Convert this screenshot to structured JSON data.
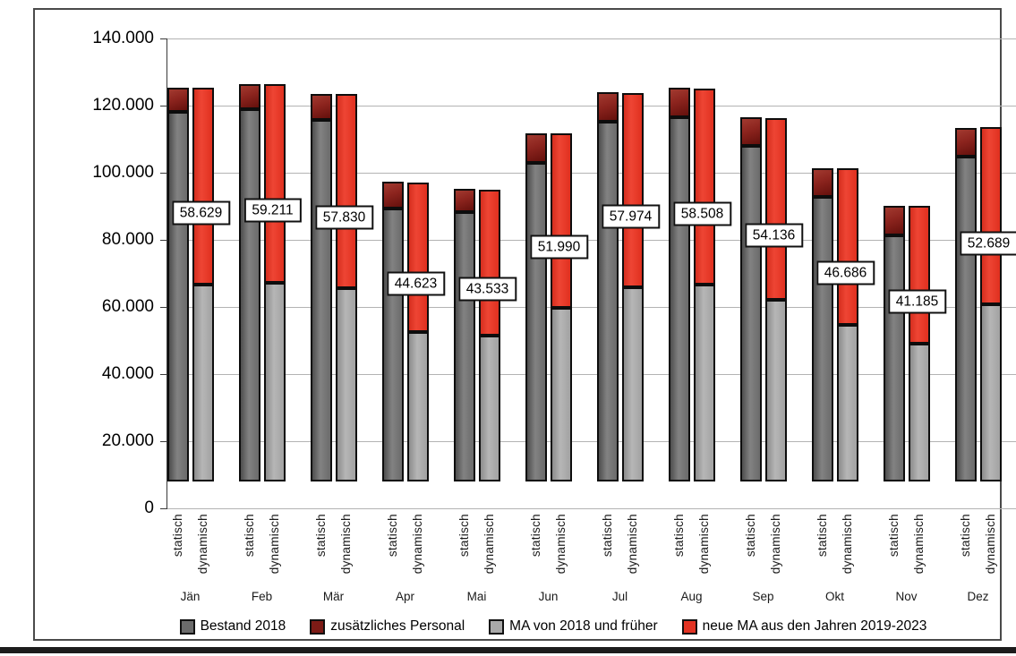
{
  "chart_data": {
    "type": "bar",
    "subtype": "grouped-stacked",
    "title": "",
    "categories": [
      "Jän",
      "Feb",
      "Mär",
      "Apr",
      "Mai",
      "Jun",
      "Jul",
      "Aug",
      "Sep",
      "Okt",
      "Nov",
      "Dez"
    ],
    "group_labels": [
      "statisch",
      "dynamisch"
    ],
    "series": [
      {
        "name": "Bestand 2018",
        "bar": "statisch",
        "color": "#6b6b6b",
        "values": [
          110200,
          111000,
          107700,
          81300,
          80200,
          94900,
          107100,
          108400,
          99900,
          84800,
          73400,
          96800
        ]
      },
      {
        "name": "zusätzliches Personal",
        "bar": "statisch",
        "color": "#7d1b16",
        "values": [
          7200,
          7400,
          7800,
          7900,
          6800,
          8900,
          8800,
          8700,
          8400,
          8600,
          8900,
          8600
        ]
      },
      {
        "name": "MA von 2018 und früher",
        "bar": "dynamisch",
        "color": "#a8a8a8",
        "values": [
          58771,
          59189,
          57670,
          44577,
          43467,
          51810,
          57926,
          58592,
          54164,
          46714,
          41115,
          52711
        ]
      },
      {
        "name": "neue MA aus den Jahren 2019-2023",
        "bar": "dynamisch",
        "color": "#e23323",
        "values": [
          58629,
          59211,
          57830,
          44623,
          43533,
          51990,
          57974,
          58508,
          54136,
          46686,
          41185,
          52689
        ]
      }
    ],
    "data_labels": {
      "series": "neue MA aus den Jahren 2019-2023",
      "values": [
        "58.629",
        "59.211",
        "57.830",
        "44.623",
        "43.533",
        "51.990",
        "57.974",
        "58.508",
        "54.136",
        "46.686",
        "41.185",
        "52.689"
      ]
    },
    "y_ticks": [
      "140.000",
      "120.000",
      "100.000",
      "80.000",
      "60.000",
      "40.000",
      "20.000",
      "0"
    ],
    "y_tick_values": [
      140000,
      120000,
      100000,
      80000,
      60000,
      40000,
      20000,
      0
    ],
    "ylim": [
      0,
      140000
    ],
    "grid": true,
    "legend_position": "bottom"
  },
  "legend": {
    "items": [
      {
        "label": "Bestand 2018",
        "color": "#6b6b6b"
      },
      {
        "label": "zusätzliches Personal",
        "color": "#7d1b16"
      },
      {
        "label": "MA von 2018 und früher",
        "color": "#a8a8a8"
      },
      {
        "label": "neue MA aus den Jahren 2019-2023",
        "color": "#e23323"
      }
    ]
  }
}
